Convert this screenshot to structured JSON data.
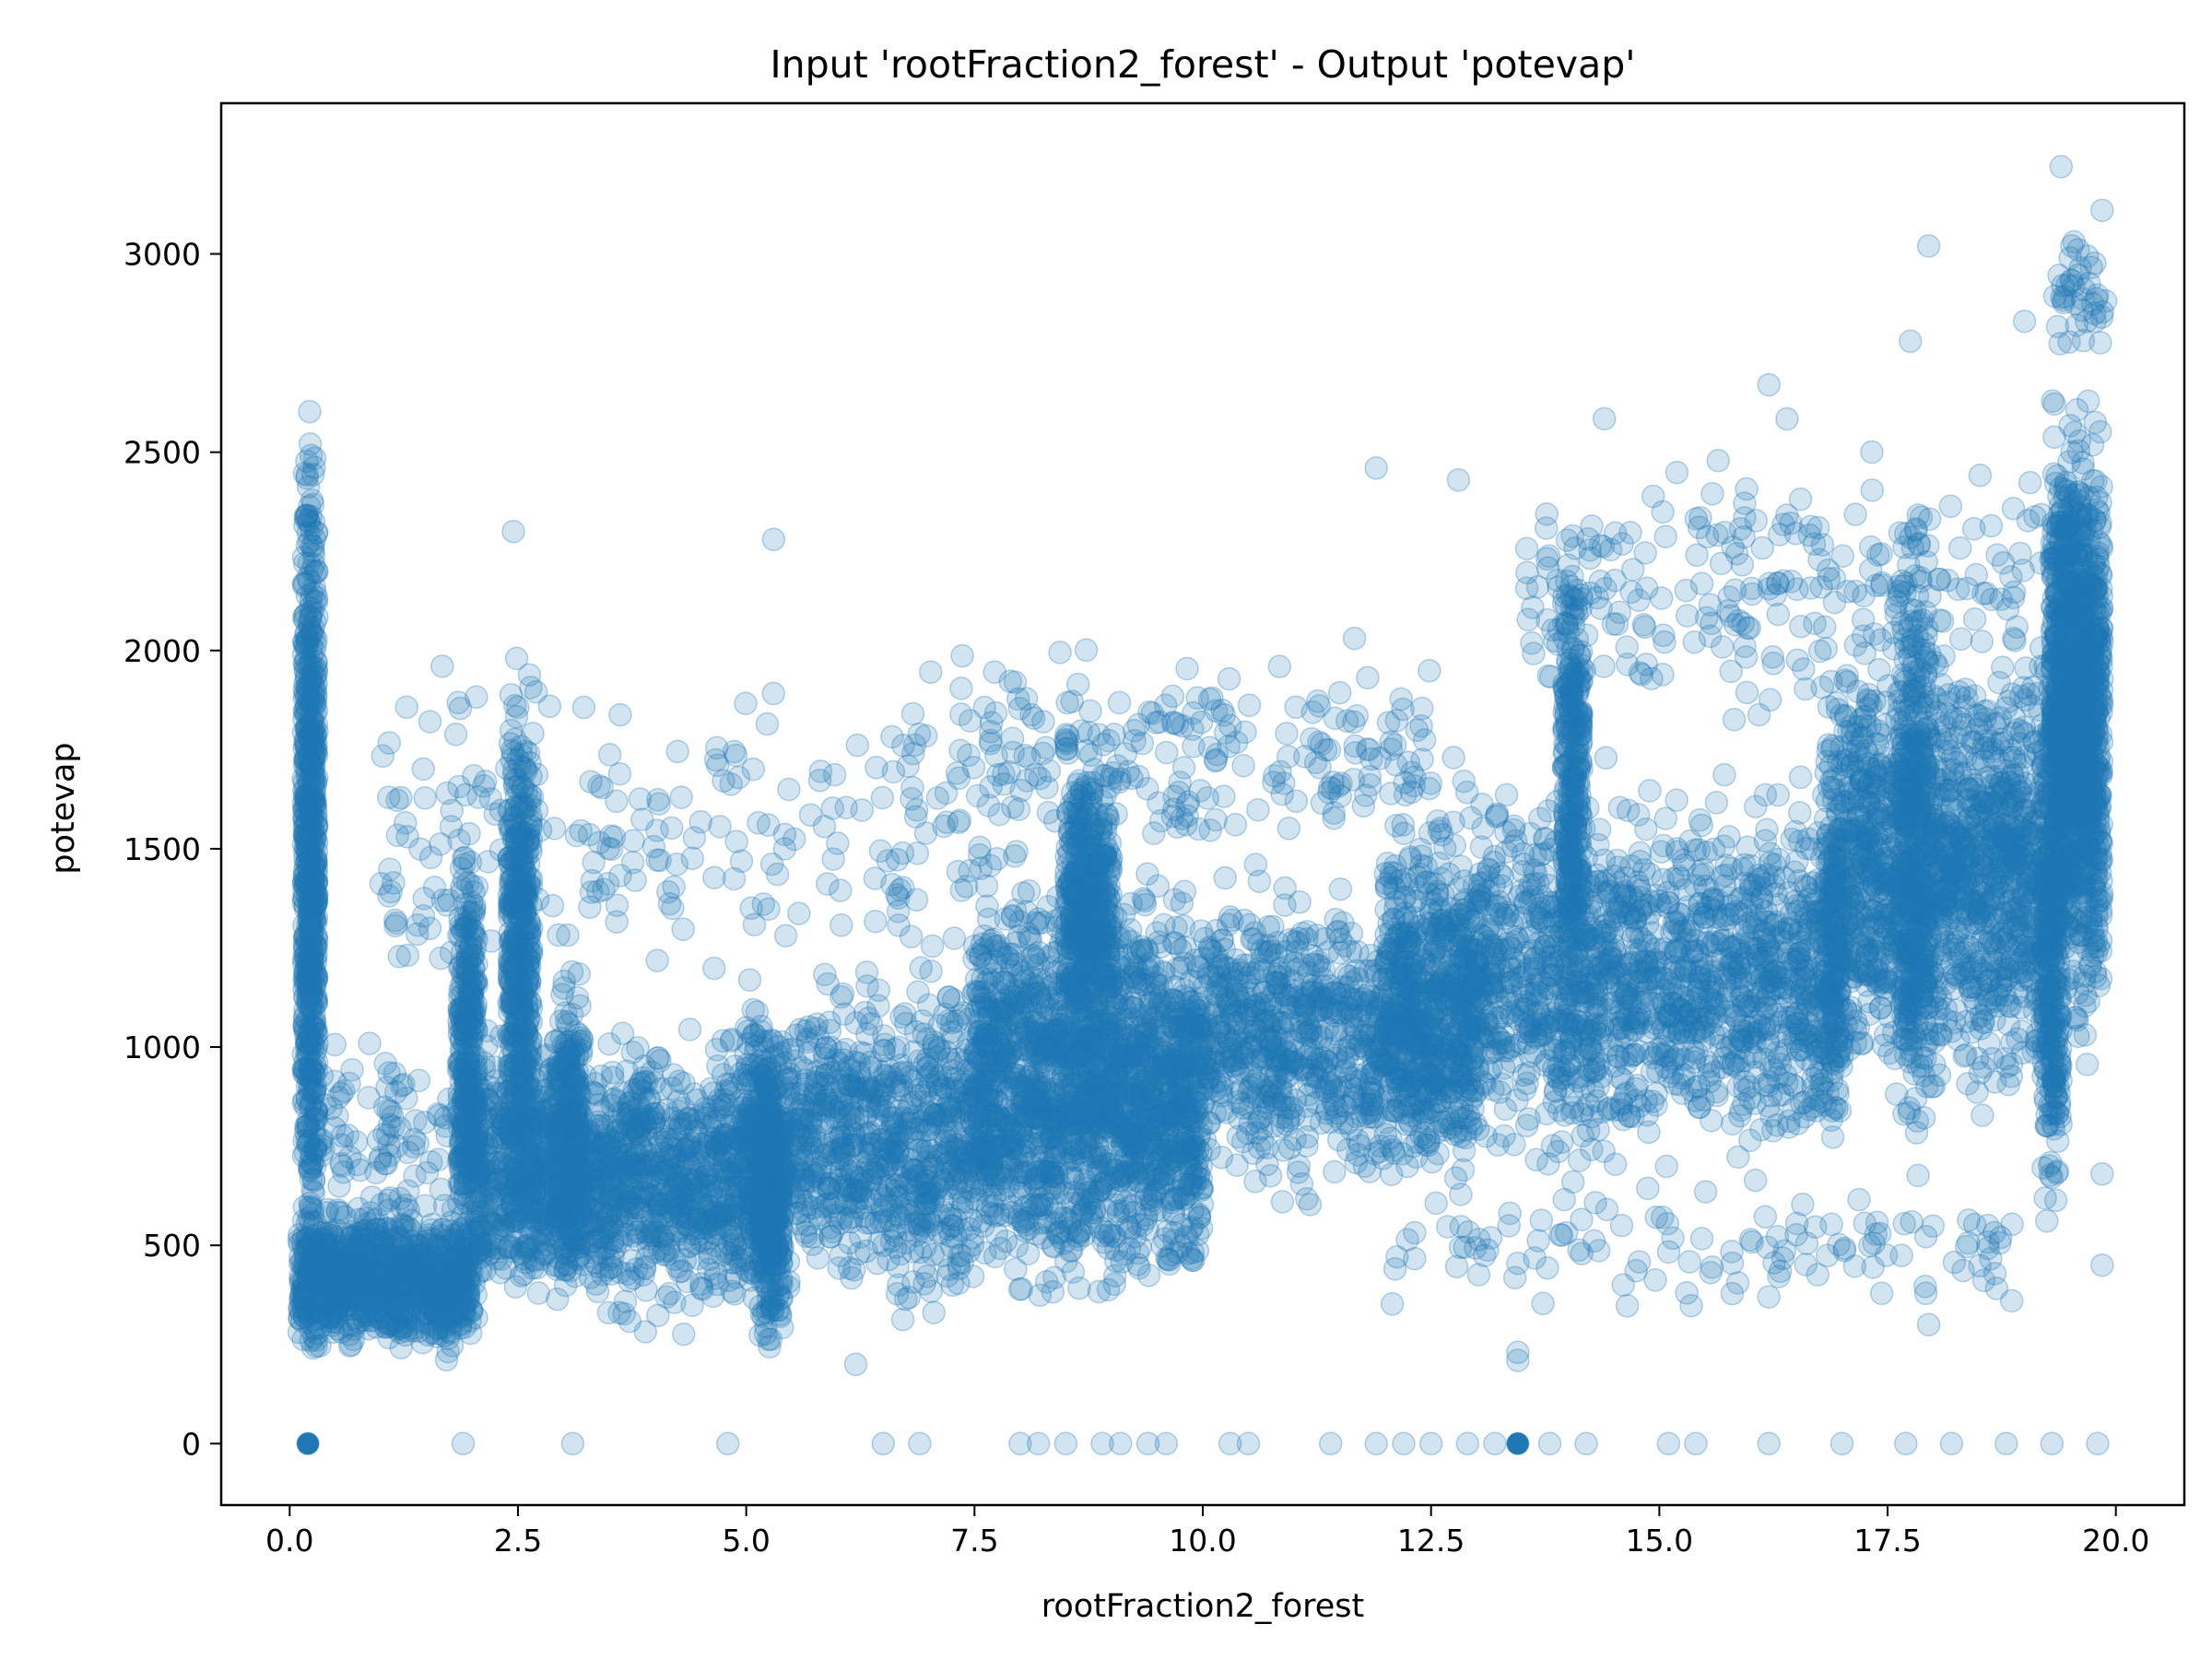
{
  "chart_data": {
    "type": "scatter",
    "title": "Input 'rootFraction2_forest' - Output 'potevap'",
    "xlabel": "rootFraction2_forest",
    "ylabel": "potevap",
    "xlim": [
      -0.75,
      20.75
    ],
    "ylim": [
      -155,
      3380
    ],
    "xticks": [
      0.0,
      2.5,
      5.0,
      7.5,
      10.0,
      12.5,
      15.0,
      17.5,
      20.0
    ],
    "xtick_labels": [
      "0.0",
      "2.5",
      "5.0",
      "7.5",
      "10.0",
      "12.5",
      "15.0",
      "17.5",
      "20.0"
    ],
    "yticks": [
      0,
      500,
      1000,
      1500,
      2000,
      2500,
      3000
    ],
    "ytick_labels": [
      "0",
      "500",
      "1000",
      "1500",
      "2000",
      "2500",
      "3000"
    ],
    "grid": false,
    "marker_color": "#1f77b4",
    "marker_alpha": 0.2,
    "clusters": [
      {
        "x": [
          0.15,
          0.3
        ],
        "y": [
          70,
          2790
        ],
        "n": 700
      },
      {
        "x": [
          0.1,
          2.0
        ],
        "y": [
          180,
          650
        ],
        "n": 900
      },
      {
        "x": [
          1.85,
          2.05
        ],
        "y": [
          350,
          1650
        ],
        "n": 300
      },
      {
        "x": [
          2.4,
          2.65
        ],
        "y": [
          300,
          2100
        ],
        "n": 450
      },
      {
        "x": [
          2.0,
          5.3
        ],
        "y": [
          250,
          1100
        ],
        "n": 1400
      },
      {
        "x": [
          2.9,
          3.2
        ],
        "y": [
          300,
          1300
        ],
        "n": 250
      },
      {
        "x": [
          5.15,
          5.4
        ],
        "y": [
          150,
          1100
        ],
        "n": 300
      },
      {
        "x": [
          5.0,
          10.0
        ],
        "y": [
          280,
          1250
        ],
        "n": 1800
      },
      {
        "x": [
          7.5,
          13.0
        ],
        "y": [
          550,
          1500
        ],
        "n": 1800
      },
      {
        "x": [
          8.5,
          9.0
        ],
        "y": [
          900,
          1850
        ],
        "n": 400
      },
      {
        "x": [
          12.0,
          17.0
        ],
        "y": [
          600,
          1750
        ],
        "n": 1800
      },
      {
        "x": [
          13.95,
          14.15
        ],
        "y": [
          900,
          2480
        ],
        "n": 300
      },
      {
        "x": [
          16.8,
          17.0
        ],
        "y": [
          700,
          2000
        ],
        "n": 150
      },
      {
        "x": [
          17.0,
          19.3
        ],
        "y": [
          750,
          2150
        ],
        "n": 1400
      },
      {
        "x": [
          17.65,
          17.95
        ],
        "y": [
          550,
          2550
        ],
        "n": 300
      },
      {
        "x": [
          19.2,
          19.4
        ],
        "y": [
          400,
          1900
        ],
        "n": 250
      },
      {
        "x": [
          19.3,
          19.85
        ],
        "y": [
          900,
          2750
        ],
        "n": 1200
      },
      {
        "x": [
          1.0,
          8.0
        ],
        "y": [
          1000,
          2050
        ],
        "n": 260
      },
      {
        "x": [
          7.5,
          12.5
        ],
        "y": [
          1400,
          2100
        ],
        "n": 200
      },
      {
        "x": [
          13.5,
          19.5
        ],
        "y": [
          1700,
          2600
        ],
        "n": 260
      },
      {
        "x": [
          0.3,
          2.0
        ],
        "y": [
          500,
          1100
        ],
        "n": 90
      },
      {
        "x": [
          12.0,
          19.0
        ],
        "y": [
          300,
          700
        ],
        "n": 120
      },
      {
        "x": [
          19.3,
          19.9
        ],
        "y": [
          2700,
          3110
        ],
        "n": 40
      }
    ],
    "outliers": [
      {
        "x": 0.2,
        "y": 0
      },
      {
        "x": 1.9,
        "y": 0
      },
      {
        "x": 3.1,
        "y": 0
      },
      {
        "x": 4.8,
        "y": 0
      },
      {
        "x": 6.5,
        "y": 0
      },
      {
        "x": 6.9,
        "y": 0
      },
      {
        "x": 8.0,
        "y": 0
      },
      {
        "x": 8.2,
        "y": 0
      },
      {
        "x": 8.5,
        "y": 0
      },
      {
        "x": 8.9,
        "y": 0
      },
      {
        "x": 9.1,
        "y": 0
      },
      {
        "x": 9.4,
        "y": 0
      },
      {
        "x": 9.6,
        "y": 0
      },
      {
        "x": 10.3,
        "y": 0
      },
      {
        "x": 10.5,
        "y": 0
      },
      {
        "x": 11.4,
        "y": 0
      },
      {
        "x": 11.9,
        "y": 0
      },
      {
        "x": 12.2,
        "y": 0
      },
      {
        "x": 12.5,
        "y": 0
      },
      {
        "x": 12.9,
        "y": 0
      },
      {
        "x": 13.2,
        "y": 0
      },
      {
        "x": 13.45,
        "y": 0
      },
      {
        "x": 13.8,
        "y": 0
      },
      {
        "x": 14.2,
        "y": 0
      },
      {
        "x": 15.1,
        "y": 0
      },
      {
        "x": 15.4,
        "y": 0
      },
      {
        "x": 16.2,
        "y": 0
      },
      {
        "x": 17.0,
        "y": 0
      },
      {
        "x": 17.7,
        "y": 0
      },
      {
        "x": 18.2,
        "y": 0
      },
      {
        "x": 18.8,
        "y": 0
      },
      {
        "x": 19.3,
        "y": 0
      },
      {
        "x": 19.8,
        "y": 0
      },
      {
        "x": 13.45,
        "y": 210
      },
      {
        "x": 13.45,
        "y": 230
      },
      {
        "x": 5.3,
        "y": 2280
      },
      {
        "x": 2.45,
        "y": 2300
      },
      {
        "x": 19.4,
        "y": 3220
      },
      {
        "x": 17.95,
        "y": 3020
      },
      {
        "x": 19.85,
        "y": 3110
      },
      {
        "x": 11.9,
        "y": 2460
      },
      {
        "x": 12.8,
        "y": 2430
      },
      {
        "x": 16.2,
        "y": 2670
      },
      {
        "x": 17.75,
        "y": 2780
      },
      {
        "x": 19.0,
        "y": 2830
      },
      {
        "x": 19.85,
        "y": 450
      },
      {
        "x": 19.85,
        "y": 680
      },
      {
        "x": 17.95,
        "y": 300
      },
      {
        "x": 15.3,
        "y": 380
      },
      {
        "x": 16.2,
        "y": 370
      },
      {
        "x": 6.2,
        "y": 200
      }
    ],
    "solid_points": [
      {
        "x": 0.2,
        "y": 0
      },
      {
        "x": 13.45,
        "y": 0
      }
    ]
  }
}
